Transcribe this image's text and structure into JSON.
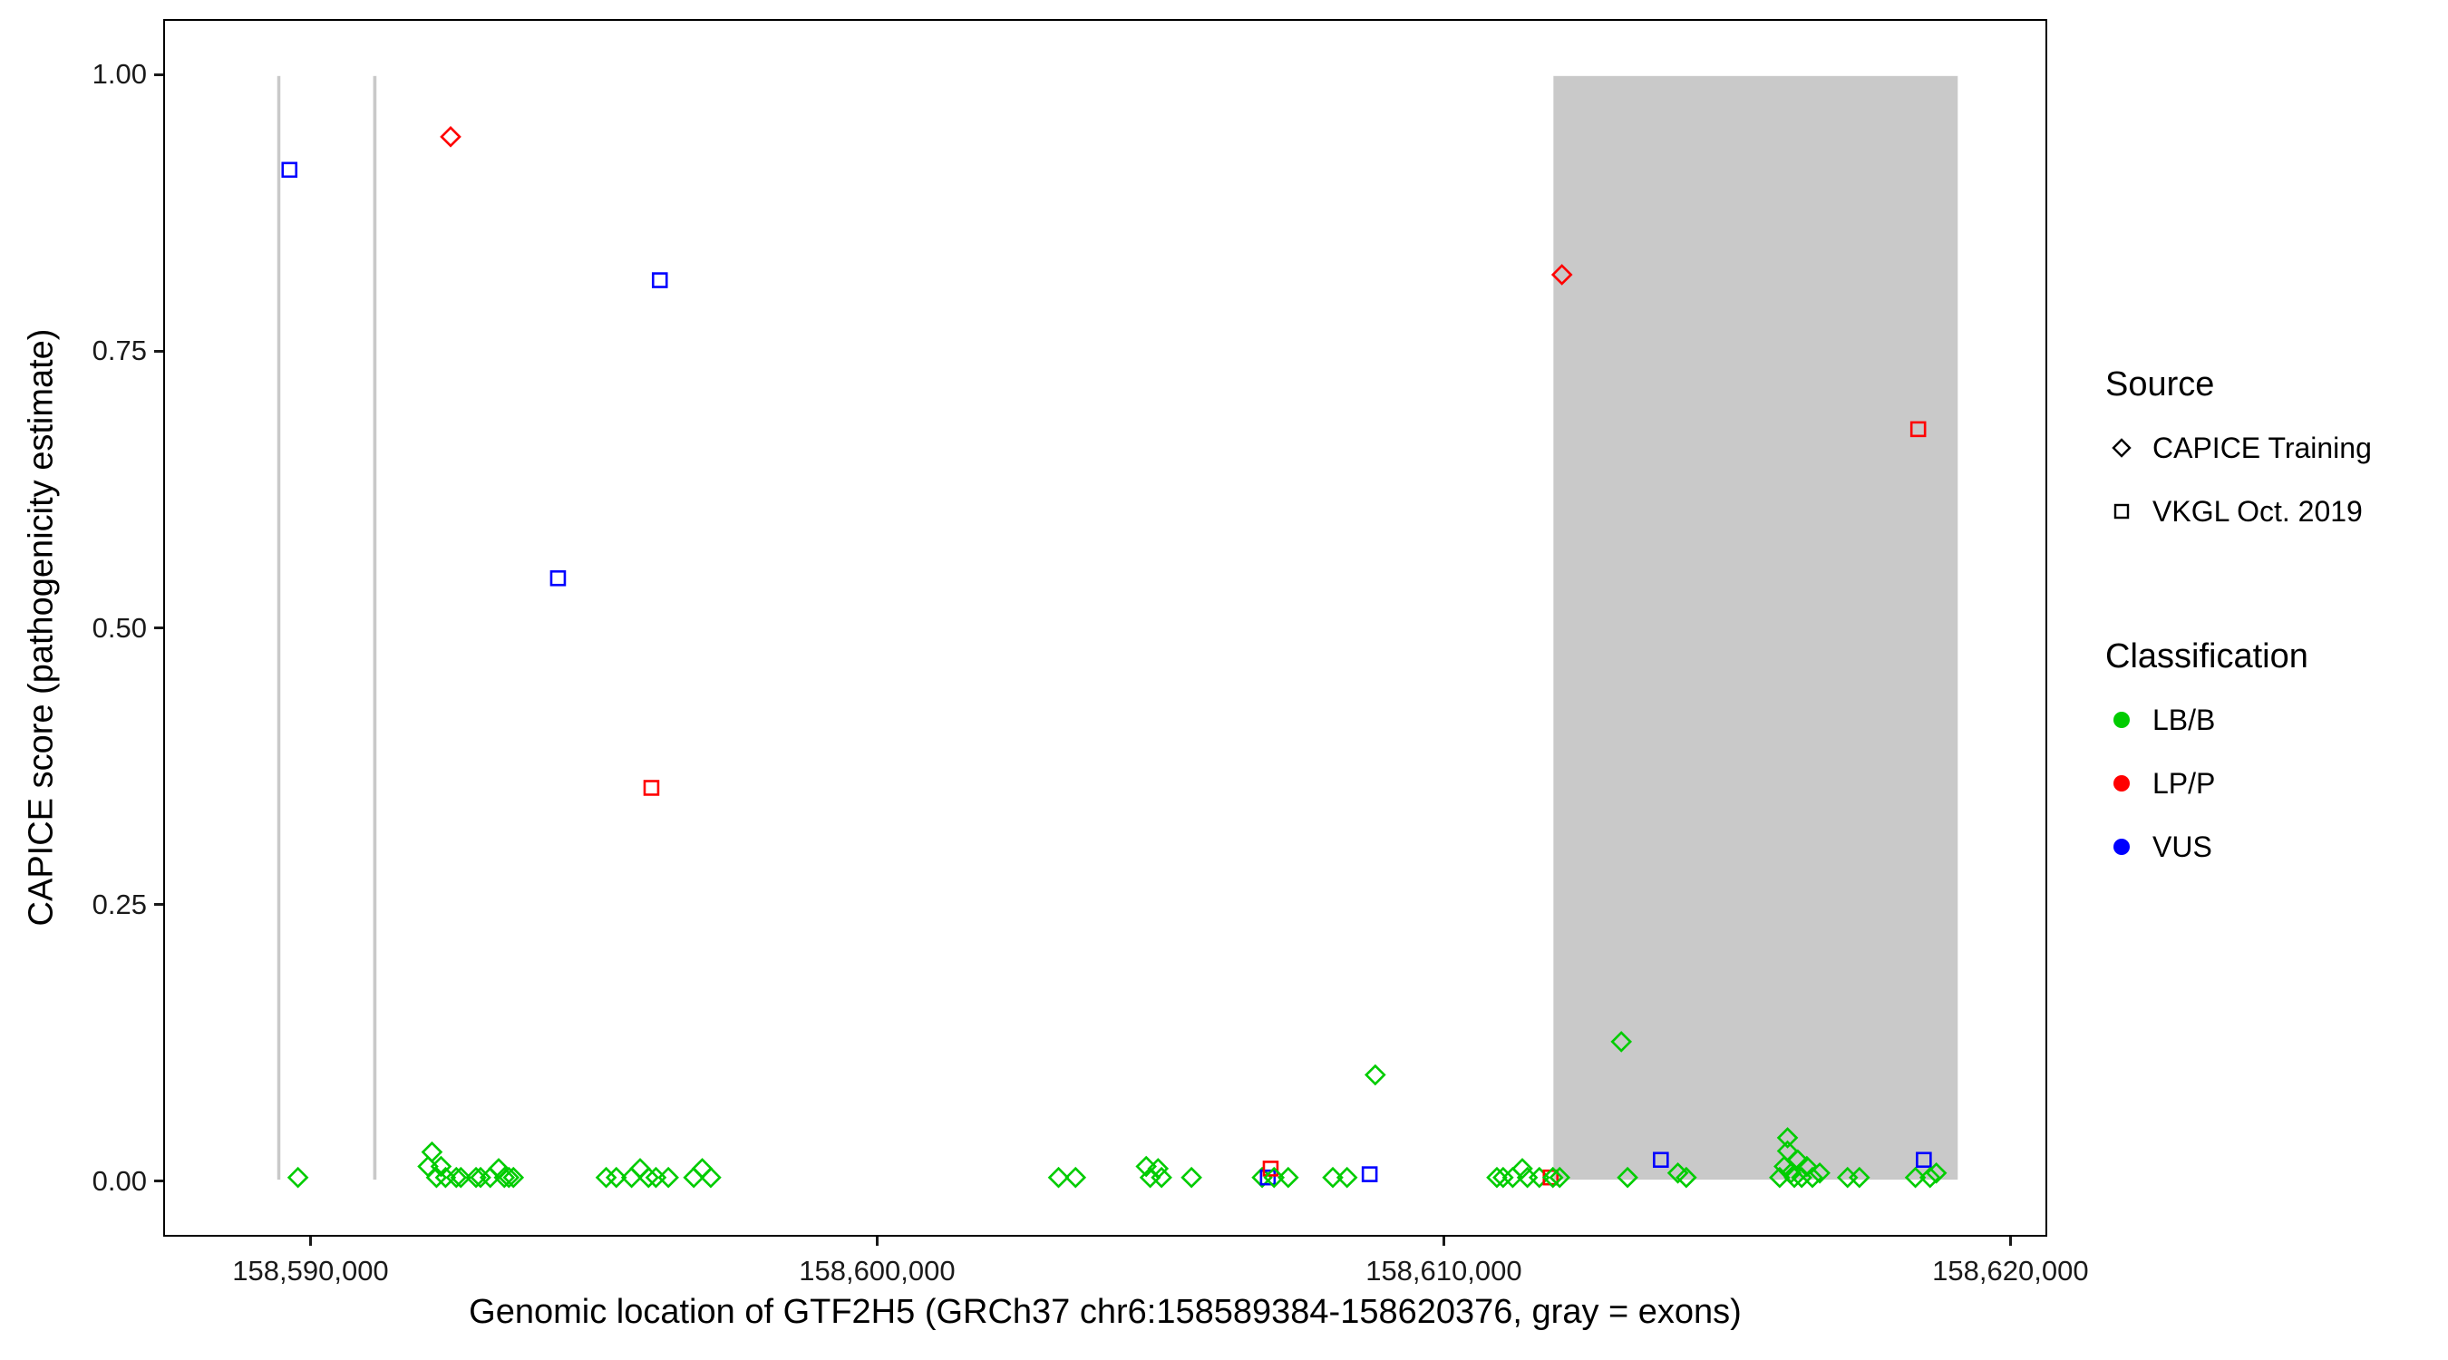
{
  "colors": {
    "classification": {
      "LB/B": "#00CC00",
      "LP/P": "#FF0000",
      "VUS": "#0000FF"
    },
    "exon": "#C9C9C9",
    "legend_marker": "#000000",
    "panel_border": "#000000",
    "background": "#FFFFFF",
    "text": "#000000"
  },
  "legend": {
    "source": {
      "title": "Source",
      "items": [
        {
          "label": "CAPICE Training",
          "shape": "diamond"
        },
        {
          "label": "VKGL Oct. 2019",
          "shape": "square"
        }
      ]
    },
    "classification": {
      "title": "Classification",
      "items": [
        {
          "label": "LB/B",
          "color": "#00CC00"
        },
        {
          "label": "LP/P",
          "color": "#FF0000"
        },
        {
          "label": "VUS",
          "color": "#0000FF"
        }
      ]
    }
  },
  "chart_data": {
    "type": "scatter",
    "title": "",
    "xlabel": "Genomic location of GTF2H5 (GRCh37 chr6:158589384-158620376, gray = exons)",
    "ylabel": "CAPICE score (pathogenicity estimate)",
    "grid": "off",
    "legend_position": "right",
    "x_axis": {
      "min": 158587400,
      "max": 158620650,
      "ticks": [
        158590000,
        158600000,
        158610000,
        158620000
      ],
      "tick_labels": [
        "158,590,000",
        "158,600,000",
        "158,610,000",
        "158,620,000"
      ]
    },
    "y_axis": {
      "min": -0.05,
      "max": 1.05,
      "ticks": [
        0.0,
        0.25,
        0.5,
        0.75,
        1.0
      ],
      "tick_labels": [
        "0.00",
        "0.25",
        "0.50",
        "0.75",
        "1.00"
      ]
    },
    "marker_shapes": {
      "CAPICE Training": "diamond",
      "VKGL Oct. 2019": "square"
    },
    "exons": [
      {
        "start": 158589384,
        "end": 158589440
      },
      {
        "start": 158591080,
        "end": 158591140
      },
      {
        "start": 158611950,
        "end": 158619100
      }
    ],
    "points": [
      [
        158589600,
        0.915,
        "VKGL Oct. 2019",
        "VUS"
      ],
      [
        158592450,
        0.945,
        "CAPICE Training",
        "LP/P"
      ],
      [
        158594350,
        0.545,
        "VKGL Oct. 2019",
        "VUS"
      ],
      [
        158596150,
        0.815,
        "VKGL Oct. 2019",
        "VUS"
      ],
      [
        158596000,
        0.355,
        "VKGL Oct. 2019",
        "LP/P"
      ],
      [
        158612100,
        0.82,
        "CAPICE Training",
        "LP/P"
      ],
      [
        158618400,
        0.68,
        "VKGL Oct. 2019",
        "LP/P"
      ],
      [
        158608800,
        0.095,
        "CAPICE Training",
        "LB/B"
      ],
      [
        158613150,
        0.125,
        "CAPICE Training",
        "LB/B"
      ],
      [
        158589750,
        0.002,
        "CAPICE Training",
        "LB/B"
      ],
      [
        158592050,
        0.012,
        "CAPICE Training",
        "LB/B"
      ],
      [
        158592120,
        0.025,
        "CAPICE Training",
        "LB/B"
      ],
      [
        158592200,
        0.002,
        "CAPICE Training",
        "LB/B"
      ],
      [
        158592280,
        0.012,
        "CAPICE Training",
        "LB/B"
      ],
      [
        158592360,
        0.002,
        "CAPICE Training",
        "LB/B"
      ],
      [
        158592550,
        0.002,
        "CAPICE Training",
        "LB/B"
      ],
      [
        158592630,
        0.002,
        "CAPICE Training",
        "LB/B"
      ],
      [
        158592900,
        0.002,
        "CAPICE Training",
        "LB/B"
      ],
      [
        158592980,
        0.002,
        "CAPICE Training",
        "LB/B"
      ],
      [
        158593150,
        0.002,
        "CAPICE Training",
        "LB/B"
      ],
      [
        158593300,
        0.01,
        "CAPICE Training",
        "LB/B"
      ],
      [
        158593400,
        0.002,
        "CAPICE Training",
        "LB/B"
      ],
      [
        158593480,
        0.002,
        "CAPICE Training",
        "LB/B"
      ],
      [
        158593560,
        0.002,
        "CAPICE Training",
        "LB/B"
      ],
      [
        158595200,
        0.002,
        "CAPICE Training",
        "LB/B"
      ],
      [
        158595380,
        0.002,
        "CAPICE Training",
        "LB/B"
      ],
      [
        158595650,
        0.002,
        "CAPICE Training",
        "LB/B"
      ],
      [
        158595800,
        0.01,
        "CAPICE Training",
        "LB/B"
      ],
      [
        158595950,
        0.002,
        "CAPICE Training",
        "LB/B"
      ],
      [
        158596080,
        0.002,
        "CAPICE Training",
        "LB/B"
      ],
      [
        158596300,
        0.002,
        "CAPICE Training",
        "LB/B"
      ],
      [
        158596750,
        0.002,
        "CAPICE Training",
        "LB/B"
      ],
      [
        158596900,
        0.01,
        "CAPICE Training",
        "LB/B"
      ],
      [
        158597050,
        0.002,
        "CAPICE Training",
        "LB/B"
      ],
      [
        158603200,
        0.002,
        "CAPICE Training",
        "LB/B"
      ],
      [
        158603500,
        0.002,
        "CAPICE Training",
        "LB/B"
      ],
      [
        158604750,
        0.012,
        "CAPICE Training",
        "LB/B"
      ],
      [
        158604820,
        0.002,
        "CAPICE Training",
        "LB/B"
      ],
      [
        158604960,
        0.01,
        "CAPICE Training",
        "LB/B"
      ],
      [
        158605020,
        0.002,
        "CAPICE Training",
        "LB/B"
      ],
      [
        158605550,
        0.002,
        "CAPICE Training",
        "LB/B"
      ],
      [
        158606800,
        0.002,
        "CAPICE Training",
        "LB/B"
      ],
      [
        158606900,
        0.002,
        "VKGL Oct. 2019",
        "VUS"
      ],
      [
        158606950,
        0.01,
        "VKGL Oct. 2019",
        "LP/P"
      ],
      [
        158607010,
        0.002,
        "CAPICE Training",
        "LB/B"
      ],
      [
        158607260,
        0.002,
        "CAPICE Training",
        "LB/B"
      ],
      [
        158608050,
        0.002,
        "CAPICE Training",
        "LB/B"
      ],
      [
        158608300,
        0.002,
        "CAPICE Training",
        "LB/B"
      ],
      [
        158608700,
        0.005,
        "VKGL Oct. 2019",
        "VUS"
      ],
      [
        158610950,
        0.002,
        "CAPICE Training",
        "LB/B"
      ],
      [
        158611060,
        0.002,
        "CAPICE Training",
        "LB/B"
      ],
      [
        158611230,
        0.002,
        "CAPICE Training",
        "LB/B"
      ],
      [
        158611400,
        0.01,
        "CAPICE Training",
        "LB/B"
      ],
      [
        158611490,
        0.002,
        "CAPICE Training",
        "LB/B"
      ],
      [
        158611700,
        0.002,
        "CAPICE Training",
        "LB/B"
      ],
      [
        158611900,
        0.002,
        "VKGL Oct. 2019",
        "LP/P"
      ],
      [
        158611940,
        0.002,
        "CAPICE Training",
        "LB/B"
      ],
      [
        158612060,
        0.002,
        "CAPICE Training",
        "LB/B"
      ],
      [
        158613260,
        0.002,
        "CAPICE Training",
        "LB/B"
      ],
      [
        158613850,
        0.018,
        "VKGL Oct. 2019",
        "VUS"
      ],
      [
        158614150,
        0.006,
        "CAPICE Training",
        "LB/B"
      ],
      [
        158614300,
        0.002,
        "CAPICE Training",
        "LB/B"
      ],
      [
        158615950,
        0.002,
        "CAPICE Training",
        "LB/B"
      ],
      [
        158616030,
        0.012,
        "CAPICE Training",
        "LB/B"
      ],
      [
        158616090,
        0.026,
        "CAPICE Training",
        "LB/B"
      ],
      [
        158616090,
        0.038,
        "CAPICE Training",
        "LB/B"
      ],
      [
        158616150,
        0.006,
        "CAPICE Training",
        "LB/B"
      ],
      [
        158616210,
        0.002,
        "CAPICE Training",
        "LB/B"
      ],
      [
        158616270,
        0.018,
        "CAPICE Training",
        "LB/B"
      ],
      [
        158616340,
        0.002,
        "CAPICE Training",
        "LB/B"
      ],
      [
        158616430,
        0.012,
        "CAPICE Training",
        "LB/B"
      ],
      [
        158616530,
        0.002,
        "CAPICE Training",
        "LB/B"
      ],
      [
        158616660,
        0.006,
        "CAPICE Training",
        "LB/B"
      ],
      [
        158617150,
        0.002,
        "CAPICE Training",
        "LB/B"
      ],
      [
        158617360,
        0.002,
        "CAPICE Training",
        "LB/B"
      ],
      [
        158618350,
        0.002,
        "CAPICE Training",
        "LB/B"
      ],
      [
        158618500,
        0.018,
        "VKGL Oct. 2019",
        "VUS"
      ],
      [
        158618610,
        0.002,
        "CAPICE Training",
        "LB/B"
      ],
      [
        158618720,
        0.006,
        "CAPICE Training",
        "LB/B"
      ]
    ]
  }
}
